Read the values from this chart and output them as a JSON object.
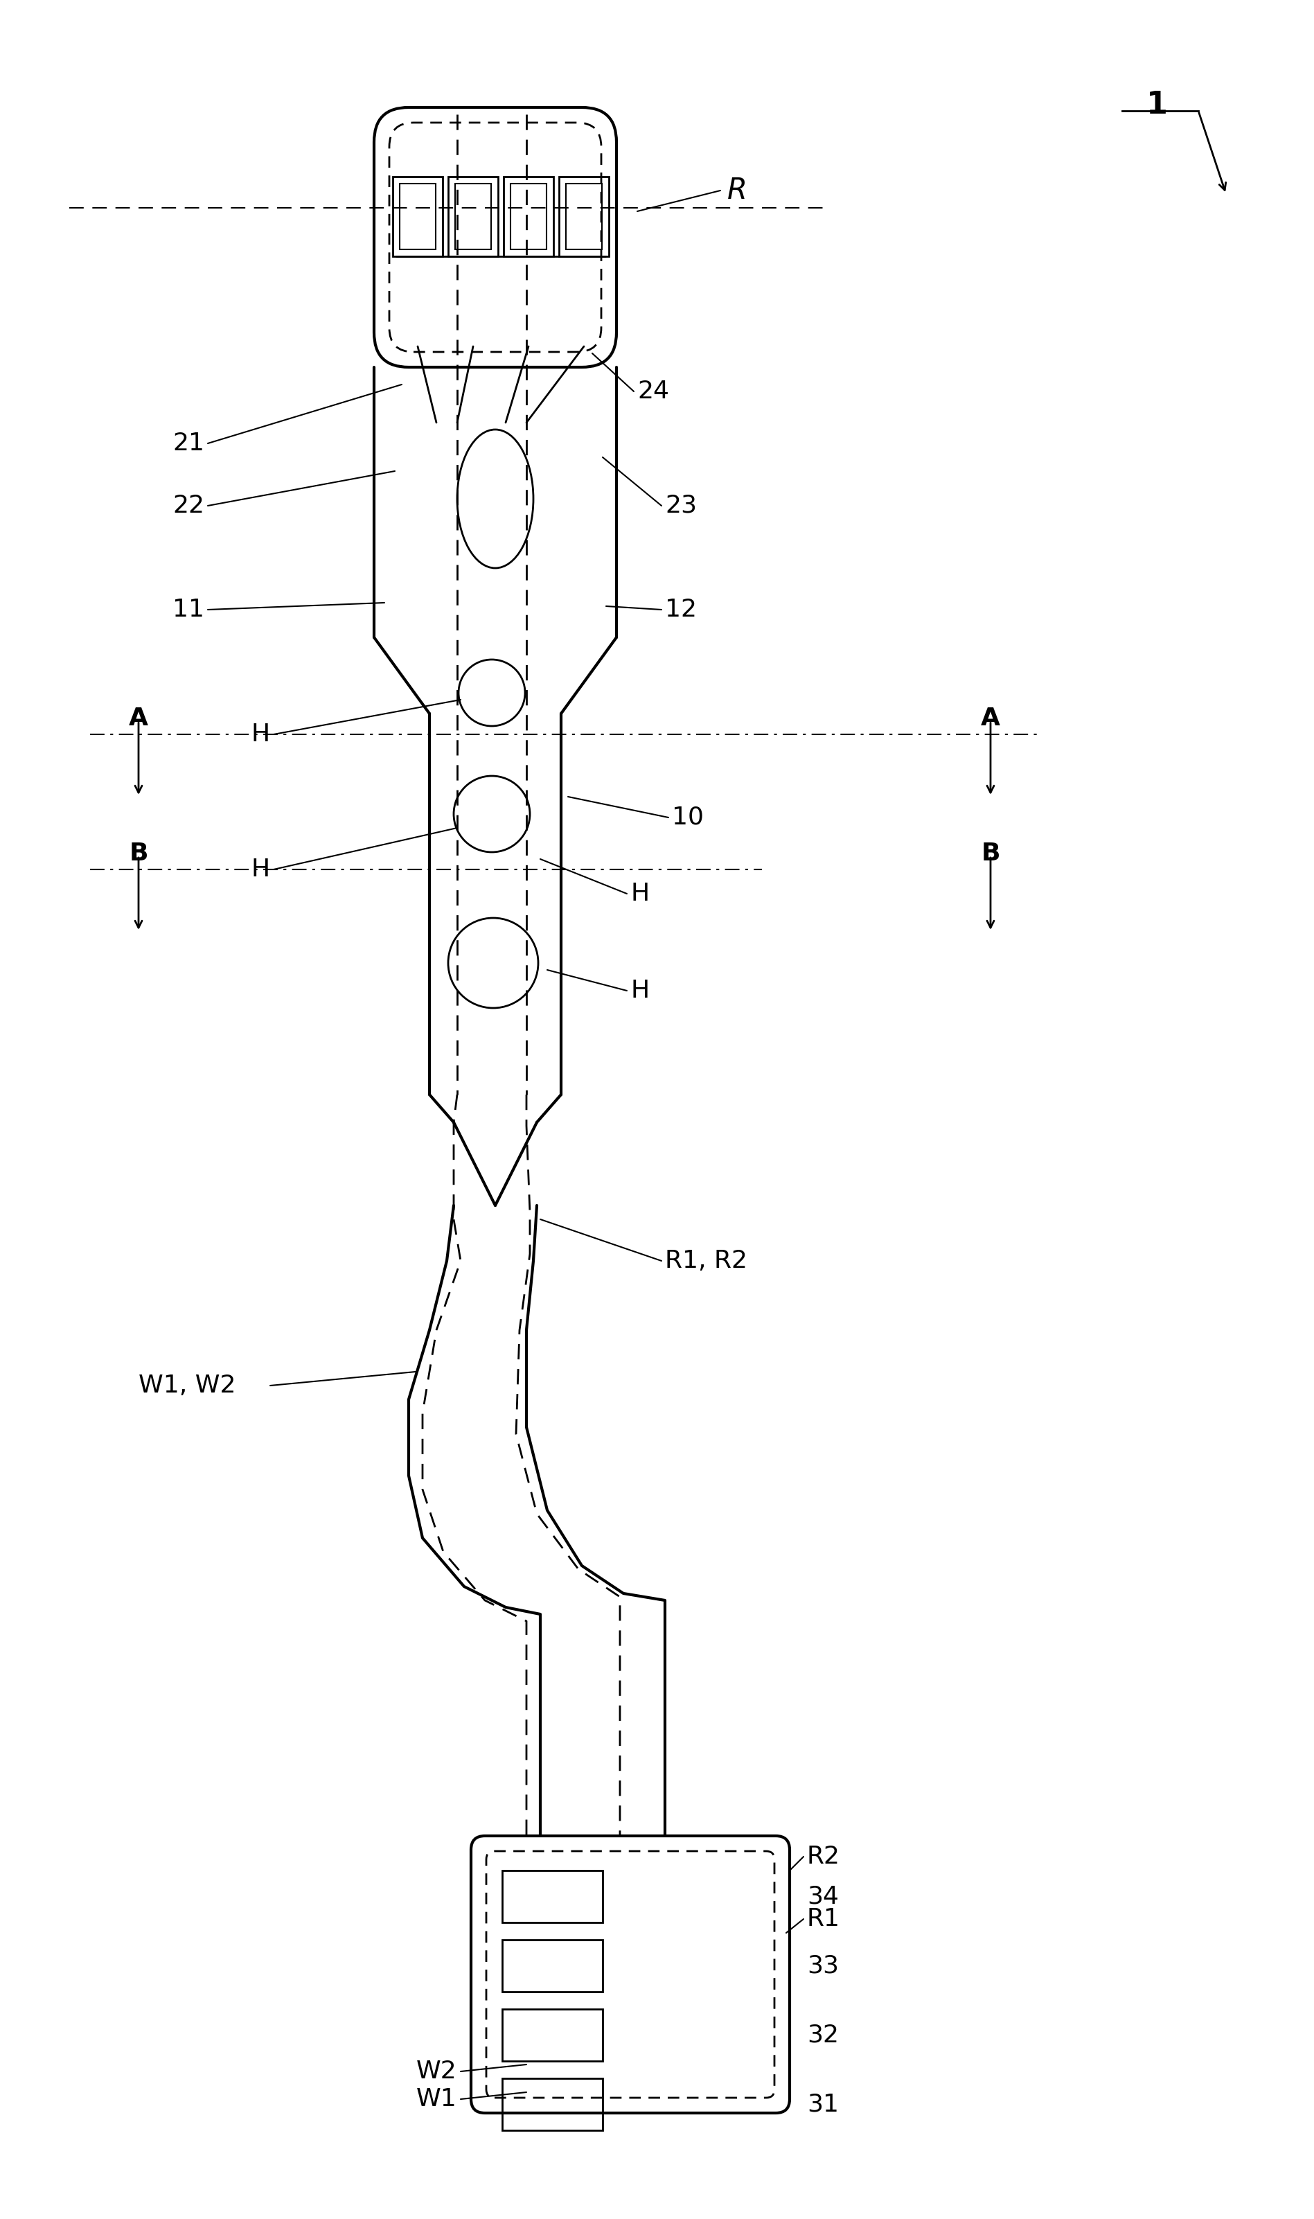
{
  "fig_width": 18.97,
  "fig_height": 32.03,
  "bg_color": "#ffffff",
  "line_color": "#000000",
  "label_1": "1",
  "label_R": "R",
  "label_R1R2": "R1, R2",
  "label_W1W2": "W1, W2",
  "label_W1": "W1",
  "label_W2": "W2",
  "label_R1": "R1",
  "label_R2": "R2",
  "label_10": "10",
  "label_11": "11",
  "label_12": "12",
  "label_21": "21",
  "label_22": "22",
  "label_23": "23",
  "label_24": "24",
  "label_31": "31",
  "label_32": "32",
  "label_33": "33",
  "label_34": "34",
  "label_A": "A",
  "label_B": "B",
  "label_H": "H"
}
